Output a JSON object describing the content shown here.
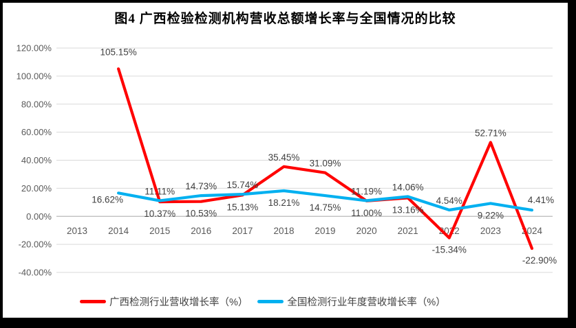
{
  "figure": {
    "title": "图4 广西检验检测机构营收总额增长率与全国情况的比较"
  },
  "chart_data": {
    "type": "line",
    "title": "图4 广西检验检测机构营收总额增长率与全国情况的比较",
    "categories": [
      "2013",
      "2014",
      "2015",
      "2016",
      "2017",
      "2018",
      "2019",
      "2020",
      "2021",
      "2022",
      "2023",
      "2024"
    ],
    "series": [
      {
        "name": "广西检测行业营收增长率（%）",
        "color": "#FF0000",
        "values": [
          null,
          105.15,
          10.37,
          10.53,
          15.13,
          35.45,
          31.09,
          11.0,
          13.16,
          -15.34,
          52.71,
          -22.9
        ],
        "label_pos": [
          null,
          "above-far",
          "below",
          "below",
          "below",
          "above",
          "above",
          "below",
          "below",
          "below",
          "above",
          "below-right"
        ]
      },
      {
        "name": "全国检测行业年度营收增长率（%）",
        "color": "#00B0F0",
        "values": [
          null,
          16.62,
          11.11,
          14.73,
          15.74,
          18.21,
          14.75,
          11.19,
          14.06,
          4.54,
          9.22,
          4.41
        ],
        "label_pos": [
          null,
          "left-below",
          "above",
          "above",
          "above",
          "below",
          "below",
          "above",
          "above",
          "above",
          "below",
          "right-above"
        ]
      }
    ],
    "y_axis": {
      "min": -40,
      "max": 120,
      "step": 20,
      "tick_labels": [
        "120.00%",
        "100.00%",
        "80.00%",
        "60.00%",
        "40.00%",
        "20.00%",
        "0.00%",
        "-20.00%",
        "-40.00%"
      ]
    },
    "grid": true,
    "legend_position": "bottom",
    "colors": {
      "red": "#FF0000",
      "blue": "#00B0F0",
      "gridline": "#D9D9D9",
      "axis_line": "#BFBFBF",
      "tick_text": "#595959",
      "data_label": "#404040"
    }
  }
}
